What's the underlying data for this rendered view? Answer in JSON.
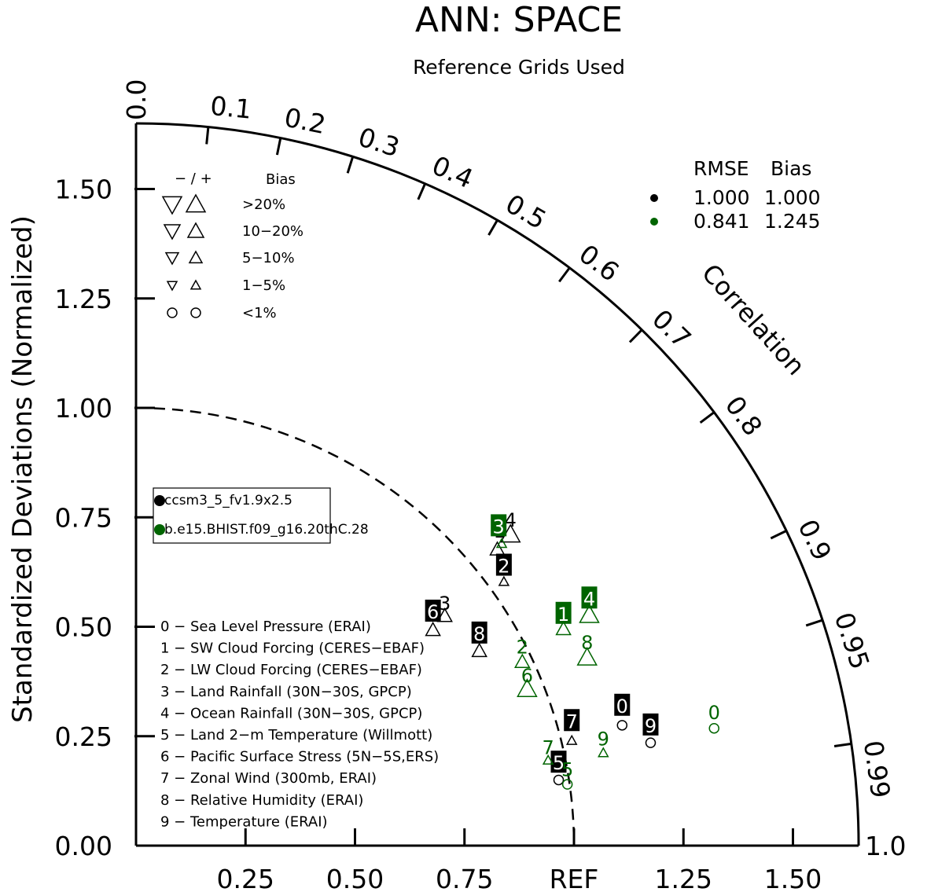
{
  "title": "ANN: SPACE",
  "subtitle": "Reference Grids Used",
  "chart_data": {
    "type": "taylor",
    "ylabel": "Standardized Deviations (Normalized)",
    "correlation_label": "Correlation",
    "ref_label": "REF",
    "y_ticks": [
      "0.00",
      "0.25",
      "0.50",
      "0.75",
      "1.00",
      "1.25",
      "1.50"
    ],
    "x_ticks": [
      {
        "v": 0.25,
        "label": "0.25"
      },
      {
        "v": 0.5,
        "label": "0.50"
      },
      {
        "v": 0.75,
        "label": "0.75"
      },
      {
        "v": 1.0,
        "label": "REF"
      },
      {
        "v": 1.25,
        "label": "1.25"
      },
      {
        "v": 1.5,
        "label": "1.50"
      }
    ],
    "corr_ticks": [
      {
        "v": 0.0,
        "label": "0.0"
      },
      {
        "v": 0.1,
        "label": "0.1"
      },
      {
        "v": 0.2,
        "label": "0.2"
      },
      {
        "v": 0.3,
        "label": "0.3"
      },
      {
        "v": 0.4,
        "label": "0.4"
      },
      {
        "v": 0.5,
        "label": "0.5"
      },
      {
        "v": 0.6,
        "label": "0.6"
      },
      {
        "v": 0.7,
        "label": "0.7"
      },
      {
        "v": 0.8,
        "label": "0.8"
      },
      {
        "v": 0.9,
        "label": "0.9"
      },
      {
        "v": 0.95,
        "label": "0.95"
      },
      {
        "v": 0.99,
        "label": "0.99"
      },
      {
        "v": 1.0,
        "label": "1.0"
      }
    ],
    "radius_max": 1.65,
    "ref_arc": 1.0,
    "series": [
      {
        "name": "ccsm3_5_fv1.9x2.5",
        "color": "#000000",
        "rmse": "1.000",
        "bias": "1.000",
        "points": [
          {
            "id": "0",
            "x": 1.11,
            "y": 0.32,
            "marker": "circle",
            "mx": 1.11,
            "my": 0.275
          },
          {
            "id": "1",
            "x": 0.83,
            "y": 0.72,
            "marker": "up_mid",
            "mx": 0.825,
            "my": 0.677
          },
          {
            "id": "2",
            "x": 0.84,
            "y": 0.64,
            "marker": "up_small",
            "mx": 0.84,
            "my": 0.603
          },
          {
            "id": "3",
            "x": 0.705,
            "y": 0.555,
            "marker": "up_mid",
            "mx": 0.705,
            "my": 0.525
          },
          {
            "id": "4",
            "x": 0.855,
            "y": 0.745,
            "marker": "up_large",
            "mx": 0.855,
            "my": 0.711
          },
          {
            "id": "5",
            "x": 0.965,
            "y": 0.19,
            "marker": "circle",
            "mx": 0.965,
            "my": 0.15
          },
          {
            "id": "6",
            "x": 0.678,
            "y": 0.535,
            "marker": "up_mid",
            "mx": 0.678,
            "my": 0.493
          },
          {
            "id": "7",
            "x": 0.995,
            "y": 0.285,
            "marker": "up_small",
            "mx": 0.995,
            "my": 0.24
          },
          {
            "id": "8",
            "x": 0.784,
            "y": 0.485,
            "marker": "up_mid",
            "mx": 0.784,
            "my": 0.445
          },
          {
            "id": "9",
            "x": 1.175,
            "y": 0.275,
            "marker": "circle",
            "mx": 1.175,
            "my": 0.235
          }
        ]
      },
      {
        "name": "b.e15.BHIST.f09_g16.20thC.28",
        "color": "#006400",
        "rmse": "0.841",
        "bias": "1.245",
        "points": [
          {
            "id": "0",
            "x": 1.32,
            "y": 0.305,
            "marker": "circle",
            "mx": 1.32,
            "my": 0.268
          },
          {
            "id": "1",
            "x": 0.976,
            "y": 0.53,
            "marker": "up_mid",
            "mx": 0.976,
            "my": 0.495
          },
          {
            "id": "2",
            "x": 0.882,
            "y": 0.455,
            "marker": "up_mid",
            "mx": 0.882,
            "my": 0.42
          },
          {
            "id": "3",
            "x": 0.828,
            "y": 0.73,
            "marker": "up_small",
            "mx": 0.835,
            "my": 0.69
          },
          {
            "id": "4",
            "x": 1.035,
            "y": 0.565,
            "marker": "up_large",
            "mx": 1.035,
            "my": 0.527
          },
          {
            "id": "5",
            "x": 0.985,
            "y": 0.175,
            "marker": "circle",
            "mx": 0.985,
            "my": 0.14
          },
          {
            "id": "6",
            "x": 0.893,
            "y": 0.39,
            "marker": "up_large",
            "mx": 0.893,
            "my": 0.358
          },
          {
            "id": "7",
            "x": 0.941,
            "y": 0.225,
            "marker": "up_small",
            "mx": 0.941,
            "my": 0.195
          },
          {
            "id": "8",
            "x": 1.03,
            "y": 0.465,
            "marker": "up_large",
            "mx": 1.03,
            "my": 0.43
          },
          {
            "id": "9",
            "x": 1.067,
            "y": 0.245,
            "marker": "up_small",
            "mx": 1.067,
            "my": 0.212
          }
        ]
      }
    ],
    "bias_legend": {
      "header": "− / +",
      "title": "Bias",
      "rows": [
        {
          "label": ">20%",
          "size": "large"
        },
        {
          "label": "10−20%",
          "size": "mid"
        },
        {
          "label": "5−10%",
          "size": "small"
        },
        {
          "label": "1−5%",
          "size": "tiny"
        },
        {
          "label": "<1%",
          "size": "circle"
        }
      ]
    },
    "rmse_legend": {
      "rmse_header": "RMSE",
      "bias_header": "Bias"
    },
    "variables": [
      "0 − Sea Level Pressure (ERAI)",
      "1 − SW Cloud Forcing (CERES−EBAF)",
      "2 − LW Cloud Forcing (CERES−EBAF)",
      "3 − Land Rainfall (30N−30S, GPCP)",
      "4 − Ocean Rainfall (30N−30S, GPCP)",
      "5 − Land 2−m Temperature (Willmott)",
      "6 − Pacific Surface Stress (5N−5S,ERS)",
      "7 − Zonal Wind (300mb, ERAI)",
      "8 − Relative Humidity (ERAI)",
      "9 − Temperature (ERAI)"
    ]
  }
}
